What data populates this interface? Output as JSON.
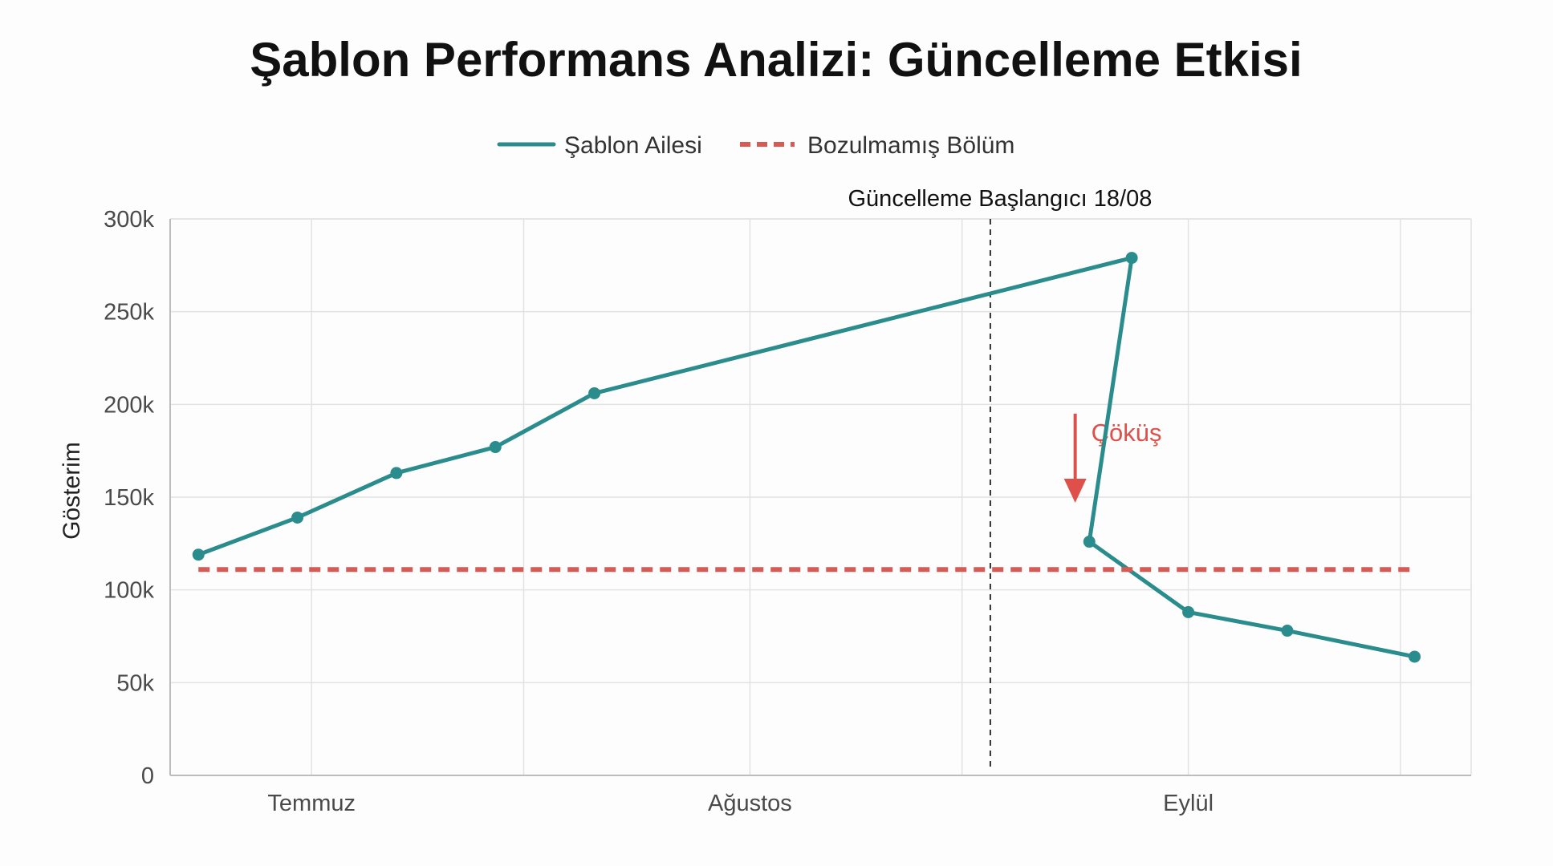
{
  "colors": {
    "series_main": "#2a8c8c",
    "series_baseline": "#d85a55",
    "grid": "#e2e2e2",
    "axis": "#bdbdbd",
    "annotation_line": "#333333",
    "crash": "#e0504a",
    "title": "#111111"
  },
  "chart_data": {
    "type": "line",
    "title": "Şablon Performans Analizi: Güncelleme Etkisi",
    "xlabel": "",
    "ylabel": "Gösterim",
    "ylim": [
      0,
      300000
    ],
    "y_ticks": [
      0,
      50000,
      100000,
      150000,
      200000,
      250000,
      300000
    ],
    "y_tick_labels": [
      "0",
      "50k",
      "100k",
      "150k",
      "200k",
      "250k",
      "300k"
    ],
    "x_domain": [
      "2024-06-21",
      "2024-09-21"
    ],
    "x_tick_labels": [
      {
        "date": "2024-07-01",
        "label": "Temmuz"
      },
      {
        "date": "2024-08-01",
        "label": "Ağustos"
      },
      {
        "date": "2024-09-01",
        "label": "Eylül"
      }
    ],
    "x_gridlines": [
      "2024-07-01",
      "2024-07-16",
      "2024-08-01",
      "2024-08-16",
      "2024-09-01",
      "2024-09-16"
    ],
    "grid": true,
    "legend_position": "top-center",
    "series": [
      {
        "name": "Şablon Ailesi",
        "style": "solid",
        "markers": true,
        "points": [
          {
            "x": "2024-06-23",
            "y": 119000
          },
          {
            "x": "2024-06-30",
            "y": 139000
          },
          {
            "x": "2024-07-07",
            "y": 163000
          },
          {
            "x": "2024-07-14",
            "y": 177000
          },
          {
            "x": "2024-07-21",
            "y": 206000
          },
          {
            "x": "2024-08-28",
            "y": 279000
          },
          {
            "x": "2024-08-25",
            "y": 126000
          },
          {
            "x": "2024-09-01",
            "y": 88000
          },
          {
            "x": "2024-09-08",
            "y": 78000
          },
          {
            "x": "2024-09-17",
            "y": 64000
          }
        ]
      },
      {
        "name": "Bozulmamış Bölüm",
        "style": "dashed",
        "markers": false,
        "points": [
          {
            "x": "2024-06-23",
            "y": 111000
          },
          {
            "x": "2024-09-17",
            "y": 111000
          }
        ]
      }
    ],
    "annotations": [
      {
        "type": "vline",
        "x": "2024-08-18",
        "label": "Güncelleme Başlangıcı 18/08"
      },
      {
        "type": "arrow",
        "x": "2024-08-24",
        "y_from": 195000,
        "y_to": 147000,
        "label": "Çöküş"
      }
    ]
  }
}
